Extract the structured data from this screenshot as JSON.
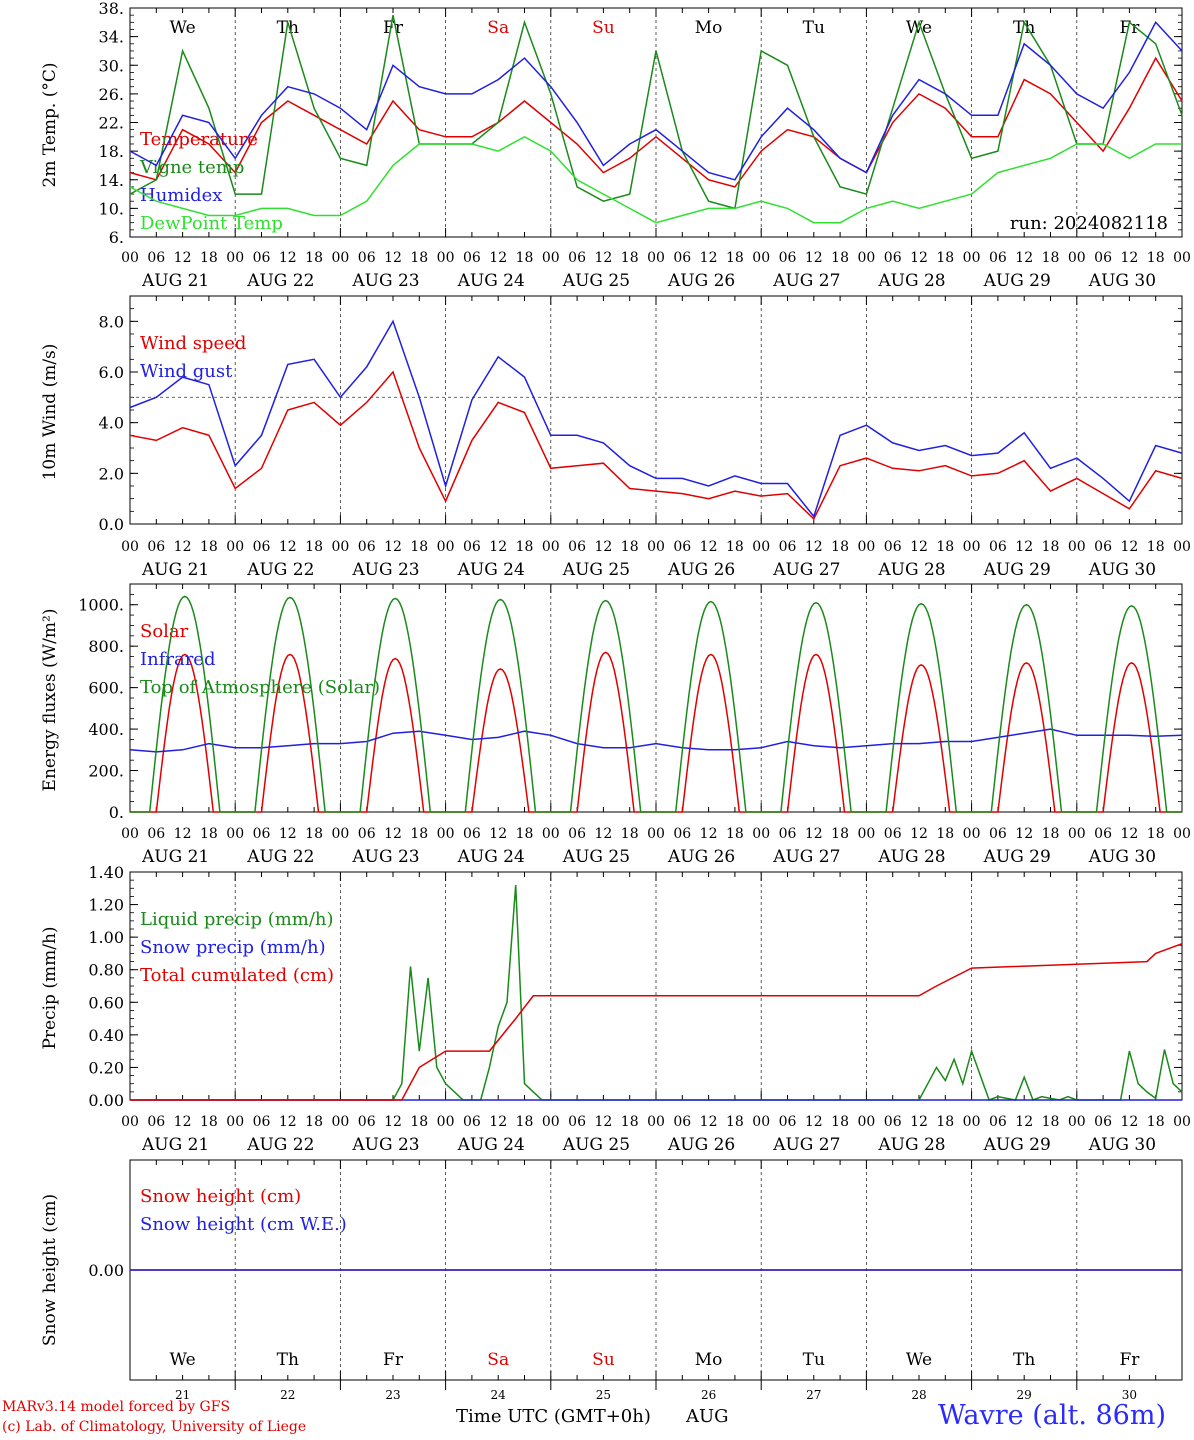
{
  "days": [
    {
      "abbr": "We",
      "date": "AUG 21",
      "num": "21",
      "color": "#000000"
    },
    {
      "abbr": "Th",
      "date": "AUG 22",
      "num": "22",
      "color": "#000000"
    },
    {
      "abbr": "Fr",
      "date": "AUG 23",
      "num": "23",
      "color": "#000000"
    },
    {
      "abbr": "Sa",
      "date": "AUG 24",
      "num": "24",
      "color": "#e00000"
    },
    {
      "abbr": "Su",
      "date": "AUG 25",
      "num": "25",
      "color": "#e00000"
    },
    {
      "abbr": "Mo",
      "date": "AUG 26",
      "num": "26",
      "color": "#000000"
    },
    {
      "abbr": "Tu",
      "date": "AUG 27",
      "num": "27",
      "color": "#000000"
    },
    {
      "abbr": "We",
      "date": "AUG 28",
      "num": "28",
      "color": "#000000"
    },
    {
      "abbr": "Th",
      "date": "AUG 29",
      "num": "29",
      "color": "#000000"
    },
    {
      "abbr": "Fr",
      "date": "AUG 30",
      "num": "30",
      "color": "#000000"
    }
  ],
  "hour_ticks": [
    "00",
    "06",
    "12",
    "18"
  ],
  "hour_end": "00",
  "chart_data": [
    {
      "type": "line",
      "ylabel": "2m Temp. (°C)",
      "ylim": [
        6,
        38
      ],
      "yticks": [
        "6.",
        "10.",
        "14.",
        "18.",
        "22.",
        "26.",
        "30.",
        "34.",
        "38."
      ],
      "annotation": "run: 2024082118",
      "show_day_abbr": true,
      "series": [
        {
          "name": "Temperature",
          "color": "#e00000",
          "x": [
            0,
            6,
            12,
            18,
            24,
            30,
            36,
            42,
            48,
            54,
            60,
            66,
            72,
            78,
            84,
            90,
            96,
            102,
            108,
            114,
            120,
            126,
            132,
            138,
            144,
            150,
            156,
            162,
            168,
            174,
            180,
            186,
            192,
            198,
            204,
            210,
            216,
            222,
            228,
            234,
            240
          ],
          "y": [
            15,
            14,
            21,
            19,
            15,
            22,
            25,
            23,
            21,
            19,
            25,
            21,
            20,
            20,
            22,
            25,
            22,
            19,
            15,
            17,
            20,
            17,
            14,
            13,
            18,
            21,
            20,
            17,
            15,
            22,
            26,
            24,
            20,
            20,
            28,
            26,
            22,
            18,
            24,
            31,
            25
          ]
        },
        {
          "name": "Vigne temp",
          "color": "#1a8a1a",
          "x": [
            0,
            6,
            12,
            18,
            24,
            30,
            36,
            42,
            48,
            54,
            60,
            66,
            72,
            78,
            84,
            90,
            96,
            102,
            108,
            114,
            120,
            126,
            132,
            138,
            144,
            150,
            156,
            162,
            168,
            174,
            180,
            186,
            192,
            198,
            204,
            210,
            216,
            222,
            228,
            234,
            240
          ],
          "y": [
            12,
            14,
            32,
            24,
            12,
            12,
            36,
            24,
            17,
            16,
            37,
            19,
            19,
            19,
            22,
            36,
            26,
            13,
            11,
            12,
            32,
            18,
            11,
            10,
            32,
            30,
            20,
            13,
            12,
            24,
            36,
            26,
            17,
            18,
            36,
            30,
            19,
            19,
            36,
            33,
            23
          ]
        },
        {
          "name": "Humidex",
          "color": "#2020e0",
          "x": [
            0,
            6,
            12,
            18,
            24,
            30,
            36,
            42,
            48,
            54,
            60,
            66,
            72,
            78,
            84,
            90,
            96,
            102,
            108,
            114,
            120,
            126,
            132,
            138,
            144,
            150,
            156,
            162,
            168,
            174,
            180,
            186,
            192,
            198,
            204,
            210,
            216,
            222,
            228,
            234,
            240
          ],
          "y": [
            18,
            16,
            23,
            22,
            17,
            23,
            27,
            26,
            24,
            21,
            30,
            27,
            26,
            26,
            28,
            31,
            27,
            22,
            16,
            19,
            21,
            18,
            15,
            14,
            20,
            24,
            21,
            17,
            15,
            23,
            28,
            26,
            23,
            23,
            33,
            30,
            26,
            24,
            29,
            36,
            32
          ]
        },
        {
          "name": "DewPoint Temp",
          "color": "#30e030",
          "x": [
            0,
            6,
            12,
            18,
            24,
            30,
            36,
            42,
            48,
            54,
            60,
            66,
            72,
            78,
            84,
            90,
            96,
            102,
            108,
            114,
            120,
            126,
            132,
            138,
            144,
            150,
            156,
            162,
            168,
            174,
            180,
            186,
            192,
            198,
            204,
            210,
            216,
            222,
            228,
            234,
            240
          ],
          "y": [
            13,
            11,
            10,
            9,
            9,
            10,
            10,
            9,
            9,
            11,
            16,
            19,
            19,
            19,
            18,
            20,
            18,
            14,
            12,
            10,
            8,
            9,
            10,
            10,
            11,
            10,
            8,
            8,
            10,
            11,
            10,
            11,
            12,
            15,
            16,
            17,
            19,
            19,
            17,
            19,
            19
          ]
        }
      ]
    },
    {
      "type": "line",
      "ylabel": "10m Wind (m/s)",
      "ylim": [
        0,
        9
      ],
      "yticks": [
        "0.0",
        "2.0",
        "4.0",
        "6.0",
        "8.0"
      ],
      "dashed_ref": 5,
      "series": [
        {
          "name": "Wind speed",
          "color": "#e00000",
          "x": [
            0,
            6,
            12,
            18,
            24,
            30,
            36,
            42,
            48,
            54,
            60,
            66,
            72,
            78,
            84,
            90,
            96,
            102,
            108,
            114,
            120,
            126,
            132,
            138,
            144,
            150,
            156,
            162,
            168,
            174,
            180,
            186,
            192,
            198,
            204,
            210,
            216,
            222,
            228,
            234,
            240
          ],
          "y": [
            3.5,
            3.3,
            3.8,
            3.5,
            1.4,
            2.2,
            4.5,
            4.8,
            3.9,
            4.8,
            6.0,
            3.0,
            0.9,
            3.3,
            4.8,
            4.4,
            2.2,
            2.3,
            2.4,
            1.4,
            1.3,
            1.2,
            1.0,
            1.3,
            1.1,
            1.2,
            0.2,
            2.3,
            2.6,
            2.2,
            2.1,
            2.3,
            1.9,
            2.0,
            2.5,
            1.3,
            1.8,
            1.2,
            0.6,
            2.1,
            1.8
          ]
        },
        {
          "name": "Wind gust",
          "color": "#2020e0",
          "x": [
            0,
            6,
            12,
            18,
            24,
            30,
            36,
            42,
            48,
            54,
            60,
            66,
            72,
            78,
            84,
            90,
            96,
            102,
            108,
            114,
            120,
            126,
            132,
            138,
            144,
            150,
            156,
            162,
            168,
            174,
            180,
            186,
            192,
            198,
            204,
            210,
            216,
            222,
            228,
            234,
            240
          ],
          "y": [
            4.6,
            5.0,
            5.8,
            5.5,
            2.3,
            3.5,
            6.3,
            6.5,
            5.0,
            6.2,
            8.0,
            5.0,
            1.5,
            4.9,
            6.6,
            5.8,
            3.5,
            3.5,
            3.2,
            2.3,
            1.8,
            1.8,
            1.5,
            1.9,
            1.6,
            1.6,
            0.3,
            3.5,
            3.9,
            3.2,
            2.9,
            3.1,
            2.7,
            2.8,
            3.6,
            2.2,
            2.6,
            1.8,
            0.9,
            3.1,
            2.8
          ]
        }
      ]
    },
    {
      "type": "line",
      "ylabel": "Energy fluxes (W/m²)",
      "ylim": [
        0,
        1100
      ],
      "yticks": [
        "0.",
        "200.",
        "400.",
        "600.",
        "800.",
        "1000."
      ],
      "series": [
        {
          "name": "Solar",
          "color": "#e00000",
          "peaks": [
            760,
            760,
            740,
            690,
            770,
            760,
            760,
            710,
            720,
            720
          ]
        },
        {
          "name": "Infrared",
          "color": "#2020e0",
          "x": [
            0,
            6,
            12,
            18,
            24,
            30,
            36,
            42,
            48,
            54,
            60,
            66,
            72,
            78,
            84,
            90,
            96,
            102,
            108,
            114,
            120,
            126,
            132,
            138,
            144,
            150,
            156,
            162,
            168,
            174,
            180,
            186,
            192,
            198,
            204,
            210,
            216,
            222,
            228,
            234,
            240
          ],
          "y": [
            300,
            290,
            300,
            330,
            310,
            310,
            320,
            330,
            330,
            340,
            380,
            390,
            370,
            350,
            360,
            390,
            370,
            330,
            310,
            310,
            330,
            310,
            300,
            300,
            310,
            340,
            320,
            310,
            320,
            330,
            330,
            340,
            340,
            360,
            380,
            400,
            370,
            370,
            370,
            365,
            370
          ]
        },
        {
          "name": "Top of Atmosphere (Solar)",
          "color": "#1a8a1a",
          "peaks": [
            1040,
            1035,
            1030,
            1025,
            1020,
            1015,
            1010,
            1005,
            1000,
            995
          ]
        }
      ]
    },
    {
      "type": "line",
      "ylabel": "Precip (mm/h)",
      "ylim": [
        0,
        1.4
      ],
      "yticks": [
        "0.00",
        "0.20",
        "0.40",
        "0.60",
        "0.80",
        "1.00",
        "1.20",
        "1.40"
      ],
      "series": [
        {
          "name": "Liquid precip (mm/h)",
          "color": "#1a8a1a",
          "x": [
            0,
            60,
            62,
            64,
            66,
            68,
            70,
            72,
            76,
            80,
            82,
            84,
            86,
            88,
            90,
            92,
            94,
            96,
            100,
            180,
            182,
            184,
            186,
            188,
            190,
            192,
            196,
            198,
            200,
            202,
            204,
            206,
            208,
            210,
            212,
            214,
            216,
            226,
            228,
            230,
            232,
            234,
            236,
            238,
            240
          ],
          "y": [
            0,
            0,
            0.1,
            0.82,
            0.3,
            0.75,
            0.2,
            0.1,
            0,
            0,
            0.2,
            0.45,
            0.6,
            1.32,
            0.1,
            0.05,
            0,
            0,
            0,
            0,
            0.1,
            0.2,
            0.12,
            0.25,
            0.1,
            0.3,
            0,
            0.02,
            0.01,
            0,
            0.14,
            0,
            0.02,
            0.01,
            0,
            0.02,
            0,
            0,
            0.3,
            0.1,
            0.05,
            0.01,
            0.31,
            0.1,
            0.05
          ]
        },
        {
          "name": "Snow precip (mm/h)",
          "color": "#2020e0",
          "x": [
            0,
            240
          ],
          "y": [
            0,
            0
          ]
        },
        {
          "name": "Total cumulated (cm)",
          "color": "#e00000",
          "x": [
            0,
            62,
            66,
            72,
            80,
            82,
            88,
            92,
            180,
            184,
            192,
            232,
            234,
            240
          ],
          "y": [
            0,
            0,
            0.2,
            0.3,
            0.3,
            0.3,
            0.5,
            0.64,
            0.64,
            0.7,
            0.81,
            0.85,
            0.9,
            0.96
          ]
        }
      ]
    },
    {
      "type": "line",
      "ylabel": "Snow height (cm)",
      "ylim": [
        -1,
        1
      ],
      "yticks": [
        "0.00"
      ],
      "show_day_abbr_bottom": true,
      "series": [
        {
          "name": "Snow height (cm)",
          "color": "#e00000",
          "x": [
            0,
            240
          ],
          "y": [
            0,
            0
          ]
        },
        {
          "name": "Snow height (cm W.E.)",
          "color": "#2020e0",
          "x": [
            0,
            240
          ],
          "y": [
            0,
            0
          ]
        }
      ]
    }
  ],
  "footer": {
    "model": "MARv3.14 model forced by GFS",
    "credit": "(c) Lab. of Climatology, University of Liege",
    "xlabel": "Time UTC (GMT+0h)",
    "month": "AUG",
    "location": "Wavre (alt. 86m)"
  }
}
